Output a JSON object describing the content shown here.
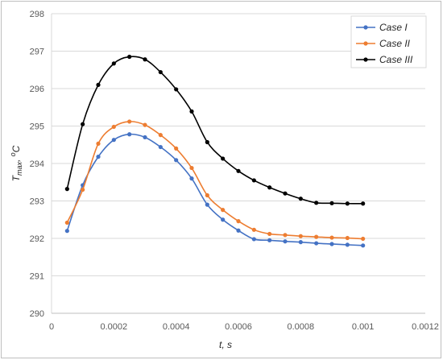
{
  "chart_data": {
    "type": "line",
    "xlabel": "t, s",
    "ylabel": {
      "main": "T",
      "sub": "max",
      "sep": ", ",
      "sup": "o",
      "unit": "C"
    },
    "xlim": [
      0,
      0.0012
    ],
    "ylim": [
      290,
      298
    ],
    "xticks": [
      "0",
      "0.0002",
      "0.0004",
      "0.0006",
      "0.0008",
      "0.001",
      "0.0012"
    ],
    "yticks": [
      "290",
      "291",
      "292",
      "293",
      "294",
      "295",
      "296",
      "297",
      "298"
    ],
    "grid": "horizontal",
    "legend_position": "top-right",
    "x": [
      5e-05,
      0.0001,
      0.00015,
      0.0002,
      0.00025,
      0.0003,
      0.00035,
      0.0004,
      0.00045,
      0.0005,
      0.00055,
      0.0006,
      0.00065,
      0.0007,
      0.00075,
      0.0008,
      0.00085,
      0.0009,
      0.00095,
      0.001
    ],
    "series": [
      {
        "name": "Case I",
        "color": "#4472c4",
        "values": [
          292.2,
          293.42,
          294.18,
          294.63,
          294.78,
          294.7,
          294.44,
          294.09,
          293.6,
          292.9,
          292.5,
          292.21,
          291.98,
          291.95,
          291.92,
          291.9,
          291.87,
          291.85,
          291.83,
          291.81
        ]
      },
      {
        "name": "Case II",
        "color": "#ed7d31",
        "values": [
          292.42,
          293.3,
          294.53,
          294.98,
          295.12,
          295.03,
          294.76,
          294.4,
          293.88,
          293.15,
          292.76,
          292.46,
          292.23,
          292.12,
          292.09,
          292.06,
          292.04,
          292.02,
          292.01,
          291.99
        ]
      },
      {
        "name": "Case III",
        "color": "#000000",
        "values": [
          293.32,
          295.05,
          296.1,
          296.67,
          296.85,
          296.78,
          296.44,
          295.98,
          295.39,
          294.57,
          294.13,
          293.8,
          293.55,
          293.36,
          293.2,
          293.06,
          292.95,
          292.94,
          292.93,
          292.93
        ]
      }
    ]
  }
}
